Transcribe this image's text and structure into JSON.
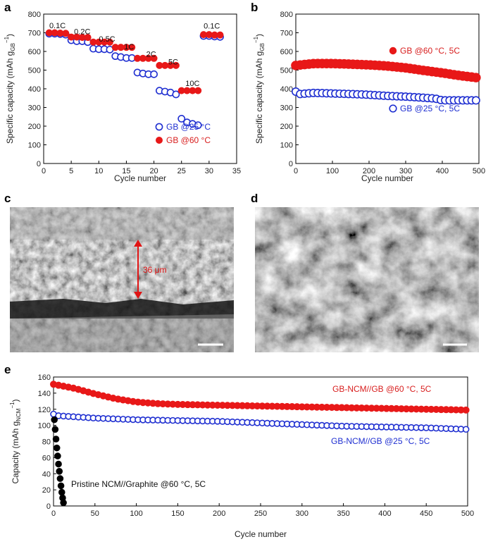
{
  "panels": {
    "a": "a",
    "b": "b",
    "c": "c",
    "d": "d",
    "e": "e"
  },
  "colors": {
    "blue": "#1f2fd1",
    "red": "#e81818",
    "black": "#000000"
  },
  "chart_data": [
    {
      "id": "a",
      "type": "scatter",
      "xlabel": "Cycle number",
      "ylabel_main": "Specific capacity (mAh g",
      "ylabel_sub": "GB",
      "ylabel_sup": "−1",
      "ylabel_end": ")",
      "xlim": [
        0,
        35
      ],
      "ylim": [
        0,
        800
      ],
      "xticks": [
        0,
        5,
        10,
        15,
        20,
        25,
        30,
        35
      ],
      "yticks": [
        0,
        100,
        200,
        300,
        400,
        500,
        600,
        700,
        800
      ],
      "rate_labels": [
        {
          "text": "0.1C",
          "x": 2.5,
          "y": 725
        },
        {
          "text": "0.2C",
          "x": 7,
          "y": 692
        },
        {
          "text": "0.5C",
          "x": 11.5,
          "y": 652
        },
        {
          "text": "1C",
          "x": 15.5,
          "y": 612
        },
        {
          "text": "2C",
          "x": 19.5,
          "y": 572
        },
        {
          "text": "5C",
          "x": 23.5,
          "y": 530
        },
        {
          "text": "10C",
          "x": 27,
          "y": 415
        },
        {
          "text": "0.1C",
          "x": 30.5,
          "y": 722
        }
      ],
      "legend": {
        "placement": "bottom-right"
      },
      "series": [
        {
          "name": "GB @25 °C",
          "marker": "open-circle",
          "color": "#1f2fd1",
          "x": [
            1,
            2,
            3,
            4,
            5,
            6,
            7,
            8,
            9,
            10,
            11,
            12,
            13,
            14,
            15,
            16,
            17,
            18,
            19,
            20,
            21,
            22,
            23,
            24,
            25,
            26,
            27,
            28,
            29,
            30,
            31,
            32
          ],
          "y": [
            695,
            695,
            693,
            690,
            660,
            655,
            655,
            650,
            615,
            612,
            612,
            610,
            575,
            570,
            565,
            565,
            487,
            482,
            478,
            478,
            390,
            385,
            380,
            370,
            240,
            220,
            212,
            205,
            683,
            683,
            680,
            678
          ]
        },
        {
          "name": "GB @60 °C",
          "marker": "filled-circle",
          "color": "#e81818",
          "x": [
            1,
            2,
            3,
            4,
            5,
            6,
            7,
            8,
            9,
            10,
            11,
            12,
            13,
            14,
            15,
            16,
            17,
            18,
            19,
            20,
            21,
            22,
            23,
            24,
            25,
            26,
            27,
            28,
            29,
            30,
            31,
            32
          ],
          "y": [
            700,
            700,
            698,
            697,
            677,
            677,
            675,
            675,
            650,
            650,
            650,
            650,
            622,
            622,
            622,
            622,
            563,
            563,
            563,
            563,
            525,
            525,
            525,
            525,
            390,
            390,
            390,
            390,
            690,
            690,
            688,
            688
          ]
        }
      ]
    },
    {
      "id": "b",
      "type": "scatter",
      "xlabel": "Cycle number",
      "ylabel_main": "Specific capacity (mAh g",
      "ylabel_sub": "GB",
      "ylabel_sup": "−1",
      "ylabel_end": ")",
      "xlim": [
        0,
        500
      ],
      "ylim": [
        0,
        800
      ],
      "xticks": [
        0,
        100,
        200,
        300,
        400,
        500
      ],
      "yticks": [
        0,
        100,
        200,
        300,
        400,
        500,
        600,
        700,
        800
      ],
      "series": [
        {
          "name": "GB @60 °C, 5C",
          "marker": "filled-circle",
          "color": "#e81818",
          "x": [
            0,
            50,
            100,
            150,
            200,
            250,
            300,
            350,
            400,
            450,
            500
          ],
          "y": [
            525,
            535,
            535,
            532,
            528,
            522,
            512,
            498,
            485,
            470,
            458
          ]
        },
        {
          "name": "GB @25 °C, 5C",
          "marker": "open-circle",
          "color": "#1f2fd1",
          "x": [
            0,
            10,
            50,
            100,
            150,
            200,
            250,
            300,
            350,
            380,
            400,
            450,
            500
          ],
          "y": [
            385,
            372,
            378,
            375,
            372,
            368,
            362,
            358,
            352,
            348,
            338,
            338,
            338
          ]
        }
      ]
    },
    {
      "id": "e",
      "type": "scatter",
      "xlabel": "Cycle number",
      "ylabel_main": "Capacity (mAh g",
      "ylabel_sub": "NCM",
      "ylabel_sup": "−1",
      "ylabel_end": ")",
      "xlim": [
        0,
        500
      ],
      "ylim": [
        0,
        160
      ],
      "xticks": [
        0,
        50,
        100,
        150,
        200,
        250,
        300,
        350,
        400,
        450,
        500
      ],
      "yticks": [
        0,
        20,
        40,
        60,
        80,
        100,
        120,
        140,
        160
      ],
      "series": [
        {
          "name": "GB-NCM//GB @60 °C, 5C",
          "marker": "filled-circle",
          "color": "#e81818",
          "x": [
            0,
            25,
            50,
            75,
            100,
            125,
            150,
            200,
            250,
            300,
            350,
            400,
            450,
            500
          ],
          "y": [
            151,
            146,
            139,
            133,
            129,
            127,
            126,
            125,
            124,
            123,
            122,
            121,
            120,
            119
          ]
        },
        {
          "name": "GB-NCM//GB @25 °C, 5C",
          "marker": "open-circle",
          "color": "#1f2fd1",
          "x": [
            0,
            5,
            50,
            100,
            150,
            200,
            250,
            300,
            350,
            400,
            450,
            500
          ],
          "y": [
            114,
            112,
            109,
            107,
            106,
            105,
            103,
            101,
            99,
            98,
            97,
            95
          ]
        },
        {
          "name": "Pristine NCM//Graphite @60 °C, 5C",
          "marker": "filled-circle",
          "color": "#000000",
          "x": [
            1,
            2,
            3,
            4,
            5,
            6,
            7,
            8,
            9,
            10,
            11,
            12
          ],
          "y": [
            107,
            95,
            83,
            72,
            62,
            52,
            43,
            34,
            25,
            17,
            10,
            4
          ]
        }
      ]
    }
  ],
  "micrographs": {
    "c": {
      "thickness_label": "36 μm"
    }
  }
}
